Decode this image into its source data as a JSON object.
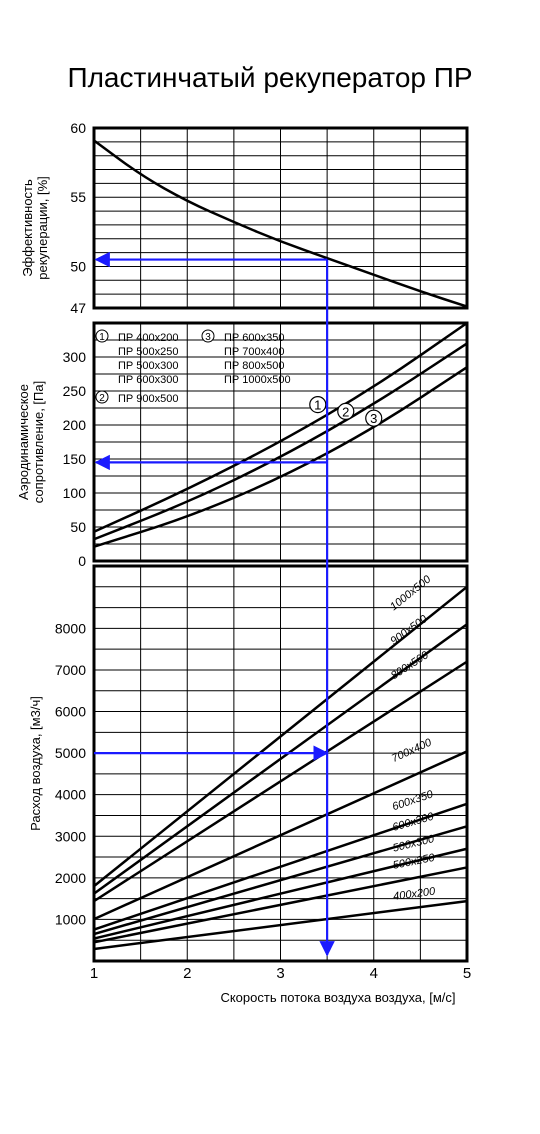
{
  "title": "Пластинчатый рекуператор ПР",
  "x_axis": {
    "label": "Скорость потока воздуха воздуха, [м/с]",
    "ticks": [
      1,
      2,
      3,
      4,
      5
    ]
  },
  "selection_example": {
    "velocity": 3.5,
    "airflow": 5000,
    "pressure_drop": 145,
    "efficiency": 50.5
  },
  "chart_data": [
    {
      "type": "line",
      "ylabel": "Эффективность рекуперации, [%]",
      "xlim": [
        1,
        5
      ],
      "ylim": [
        47,
        60
      ],
      "yticks": [
        47,
        50,
        55,
        60
      ],
      "grid": true,
      "series": [
        {
          "x": [
            1,
            1.5,
            2,
            2.5,
            3,
            3.5,
            4,
            4.5,
            5
          ],
          "y": [
            59.1,
            56.6,
            54.7,
            53.2,
            51.8,
            50.6,
            49.4,
            48.2,
            47.1
          ]
        }
      ]
    },
    {
      "type": "line",
      "ylabel": "Аэродинамическое сопротивление, [Па]",
      "xlim": [
        1,
        5
      ],
      "ylim": [
        0,
        350
      ],
      "yticks": [
        0,
        50,
        100,
        150,
        200,
        250,
        300
      ],
      "grid": true,
      "legend": {
        "groups": [
          {
            "num": "1",
            "items": [
              "ПР 400x200",
              "ПР 500x250",
              "ПР 500x300",
              "ПР 600x300"
            ]
          },
          {
            "num": "2",
            "items": [
              "ПР 900x500"
            ]
          },
          {
            "num": "3",
            "items": [
              "ПР 600x350",
              "ПР 700x400",
              "ПР 800x500",
              "ПР 1000x500"
            ]
          }
        ]
      },
      "series": [
        {
          "name": "1",
          "x": [
            1,
            2,
            3,
            4,
            5
          ],
          "y": [
            43,
            105,
            175,
            255,
            350
          ]
        },
        {
          "name": "2",
          "x": [
            1,
            2,
            3,
            4,
            5
          ],
          "y": [
            32,
            86,
            152,
            230,
            320
          ]
        },
        {
          "name": "3",
          "x": [
            1,
            2,
            3,
            4,
            5
          ],
          "y": [
            21,
            64,
            122,
            195,
            285
          ]
        }
      ]
    },
    {
      "type": "line",
      "ylabel": "Расход воздуха, [м3/ч]",
      "xlim": [
        1,
        5
      ],
      "ylim": [
        0,
        9500
      ],
      "yticks": [
        1000,
        2000,
        3000,
        4000,
        5000,
        6000,
        7000,
        8000
      ],
      "grid": true,
      "series": [
        {
          "name": "1000x500",
          "x": [
            1,
            5
          ],
          "y": [
            1800,
            9000
          ]
        },
        {
          "name": "900x500",
          "x": [
            1,
            5
          ],
          "y": [
            1620,
            8100
          ]
        },
        {
          "name": "800x500",
          "x": [
            1,
            5
          ],
          "y": [
            1440,
            7200
          ]
        },
        {
          "name": "700x400",
          "x": [
            1,
            5
          ],
          "y": [
            1008,
            5040
          ]
        },
        {
          "name": "600x350",
          "x": [
            1,
            5
          ],
          "y": [
            756,
            3780
          ]
        },
        {
          "name": "600x300",
          "x": [
            1,
            5
          ],
          "y": [
            648,
            3240
          ]
        },
        {
          "name": "500x300",
          "x": [
            1,
            5
          ],
          "y": [
            540,
            2700
          ]
        },
        {
          "name": "500x250",
          "x": [
            1,
            5
          ],
          "y": [
            450,
            2250
          ]
        },
        {
          "name": "400x200",
          "x": [
            1,
            5
          ],
          "y": [
            288,
            1440
          ]
        }
      ]
    }
  ],
  "colors": {
    "curve": "#000000",
    "grid": "#000000",
    "arrow": "#1a1aff"
  }
}
